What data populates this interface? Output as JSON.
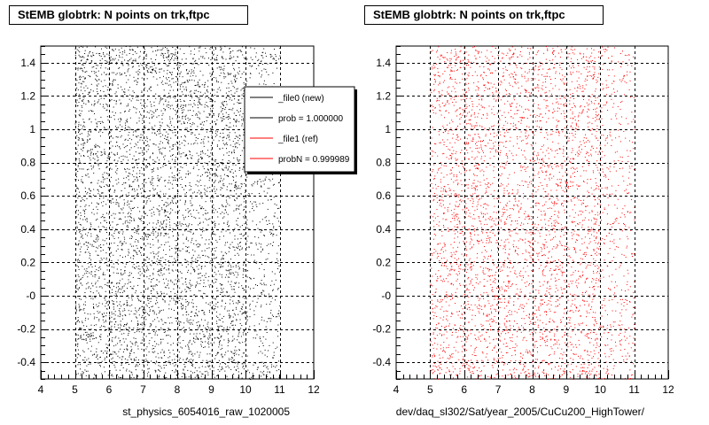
{
  "chart_data": [
    {
      "type": "scatter",
      "title": "StEMB globtrk: N points on trk,ftpc",
      "xlabel": "st_physics_6054016_raw_1020005",
      "ylabel": "",
      "xlim": [
        4,
        12
      ],
      "ylim": [
        -0.5,
        1.5
      ],
      "xticks": [
        "4",
        "5",
        "6",
        "7",
        "8",
        "9",
        "10",
        "11",
        "12"
      ],
      "yticks": [
        "-0.4",
        "-0.2",
        "-0",
        "0.2",
        "0.4",
        "0.6",
        "0.8",
        "1",
        "1.2",
        "1.4"
      ],
      "grid": true,
      "series": [
        {
          "name": "_file0 (new)",
          "color": "#000000",
          "x_range": [
            5,
            11
          ],
          "y_range": [
            -0.5,
            1.5
          ],
          "x_dense_end": 10,
          "n_points": 5200
        }
      ],
      "legend": {
        "placement": "top-right",
        "entries": [
          {
            "label": "_file0 (new)",
            "color": "#000000"
          },
          {
            "label": "prob = 1.000000",
            "color": "#000000"
          },
          {
            "label": "_file1 (ref)",
            "color": "#ff0000"
          },
          {
            "label": "probN = 0.999989",
            "color": "#ff0000"
          }
        ]
      }
    },
    {
      "type": "scatter",
      "title": "StEMB globtrk: N points on trk,ftpc",
      "xlabel": "dev/daq_sl302/Sat/year_2005/CuCu200_HighTower/",
      "ylabel": "",
      "xlim": [
        4,
        12
      ],
      "ylim": [
        -0.5,
        1.5
      ],
      "xticks": [
        "4",
        "5",
        "6",
        "7",
        "8",
        "9",
        "10",
        "11",
        "12"
      ],
      "yticks": [
        "-0.4",
        "-0.2",
        "-0",
        "0.2",
        "0.4",
        "0.6",
        "0.8",
        "1",
        "1.2",
        "1.4"
      ],
      "grid": true,
      "series": [
        {
          "name": "_file1 (ref)",
          "color": "#ff0000",
          "x_range": [
            5,
            11
          ],
          "y_range": [
            -0.5,
            1.5
          ],
          "x_dense_end": 10,
          "n_points": 4200
        }
      ]
    }
  ]
}
